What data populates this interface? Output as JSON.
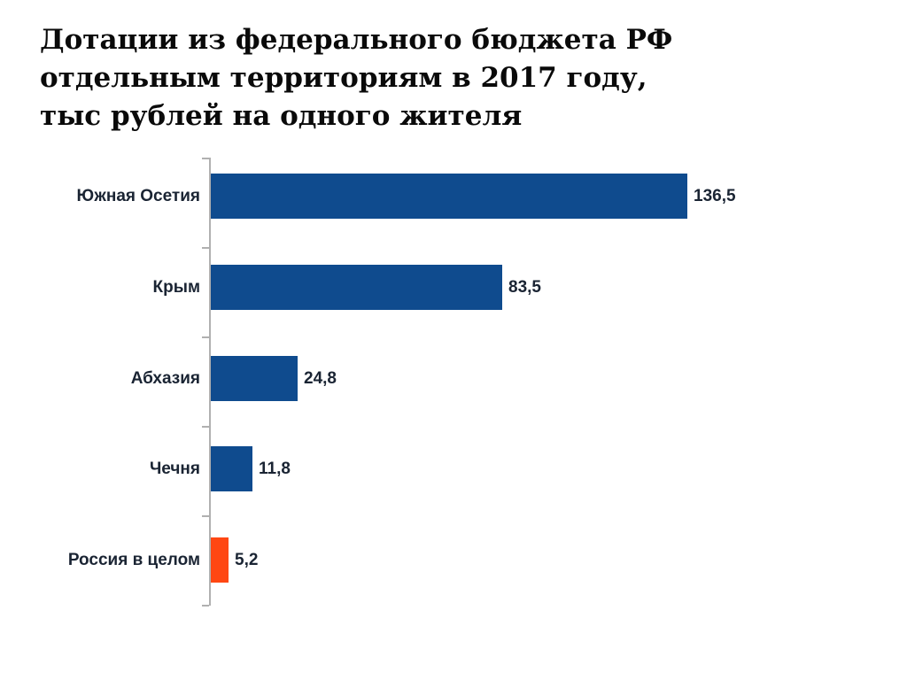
{
  "page": {
    "background": "#FFFFFF"
  },
  "chart_data": {
    "type": "bar",
    "orientation": "horizontal",
    "title": "Дотации из федерального бюджета РФ отдельным территориям в 2017 году, тыс рублей на одного жителя",
    "title_lines": [
      "Дотации из федерального бюджета РФ",
      "отдельным территориям в 2017 году,",
      "тыс рублей на одного жителя"
    ],
    "categories": [
      "Южная Осетия",
      "Крым",
      "Абхазия",
      "Чечня",
      "Россия в целом"
    ],
    "values": [
      136.5,
      83.5,
      24.8,
      11.8,
      5.2
    ],
    "value_labels": [
      "136,5",
      "83,5",
      "24,8",
      "11,8",
      "5,2"
    ],
    "bar_colors": [
      "#0F4B8E",
      "#0F4B8E",
      "#0F4B8E",
      "#0F4B8E",
      "#FF4713"
    ],
    "xlabel": "",
    "ylabel": "",
    "xlim": [
      0,
      140
    ],
    "grid": false,
    "legend": "none",
    "data_labels": true,
    "axis_color": "#B0B0B0",
    "label_color": "#1A2433",
    "title_color": "#0A0A0A"
  }
}
